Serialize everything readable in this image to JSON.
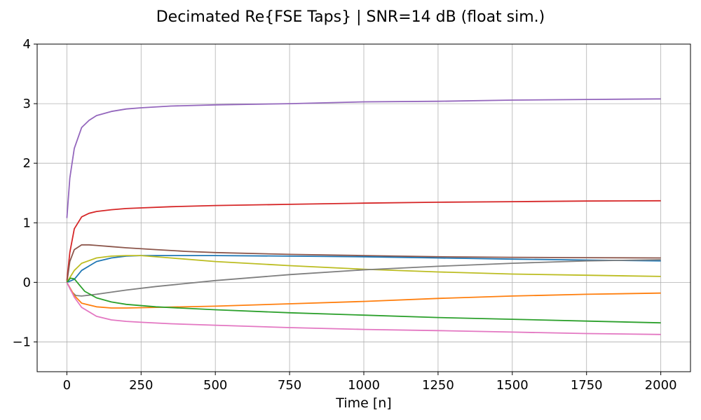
{
  "chart_data": {
    "type": "line",
    "title": "Decimated Re{FSE Taps} | SNR=14 dB (float sim.)",
    "xlabel": "Time [n]",
    "ylabel": "",
    "xlim": [
      -100,
      2100
    ],
    "ylim": [
      -1.5,
      4
    ],
    "xticks": [
      0,
      250,
      500,
      750,
      1000,
      1250,
      1500,
      1750,
      2000
    ],
    "yticks": [
      -1,
      0,
      1,
      2,
      3,
      4
    ],
    "grid": true,
    "series": [
      {
        "color": "#9467bd",
        "x": [
          0,
          10,
          25,
          50,
          75,
          100,
          150,
          200,
          250,
          350,
          500,
          750,
          1000,
          1250,
          1500,
          1750,
          2000
        ],
        "y": [
          1.08,
          1.75,
          2.25,
          2.6,
          2.72,
          2.8,
          2.87,
          2.91,
          2.93,
          2.96,
          2.98,
          3.0,
          3.03,
          3.04,
          3.06,
          3.07,
          3.08
        ]
      },
      {
        "color": "#d62728",
        "x": [
          0,
          10,
          25,
          50,
          75,
          100,
          150,
          200,
          250,
          350,
          500,
          750,
          1000,
          1250,
          1500,
          1750,
          2000
        ],
        "y": [
          0.03,
          0.5,
          0.9,
          1.1,
          1.16,
          1.19,
          1.22,
          1.24,
          1.25,
          1.27,
          1.29,
          1.31,
          1.33,
          1.345,
          1.355,
          1.365,
          1.37
        ]
      },
      {
        "color": "#8c564b",
        "x": [
          0,
          10,
          25,
          50,
          75,
          100,
          150,
          200,
          300,
          400,
          500,
          750,
          1000,
          1250,
          1500,
          1750,
          2000
        ],
        "y": [
          0.0,
          0.35,
          0.55,
          0.63,
          0.63,
          0.62,
          0.6,
          0.58,
          0.55,
          0.52,
          0.5,
          0.47,
          0.45,
          0.43,
          0.42,
          0.415,
          0.41
        ]
      },
      {
        "color": "#1f77b4",
        "x": [
          0,
          25,
          50,
          100,
          150,
          200,
          250,
          500,
          750,
          1000,
          1250,
          1500,
          1750,
          2000
        ],
        "y": [
          0.0,
          0.05,
          0.2,
          0.35,
          0.41,
          0.44,
          0.45,
          0.45,
          0.44,
          0.43,
          0.41,
          0.39,
          0.375,
          0.36
        ]
      },
      {
        "color": "#bcbd22",
        "x": [
          0,
          25,
          50,
          100,
          150,
          200,
          250,
          350,
          500,
          750,
          1000,
          1250,
          1500,
          1750,
          2000
        ],
        "y": [
          0.0,
          0.2,
          0.32,
          0.41,
          0.44,
          0.45,
          0.45,
          0.41,
          0.35,
          0.28,
          0.22,
          0.175,
          0.14,
          0.12,
          0.1
        ]
      },
      {
        "color": "#7f7f7f",
        "x": [
          0,
          15,
          30,
          50,
          100,
          200,
          300,
          500,
          750,
          1000,
          1250,
          1500,
          1750,
          2000
        ],
        "y": [
          0.0,
          -0.15,
          -0.22,
          -0.23,
          -0.2,
          -0.13,
          -0.07,
          0.03,
          0.13,
          0.21,
          0.27,
          0.32,
          0.36,
          0.38
        ]
      },
      {
        "color": "#ff7f0e",
        "x": [
          0,
          25,
          50,
          100,
          150,
          200,
          300,
          500,
          750,
          1000,
          1250,
          1500,
          1750,
          2000
        ],
        "y": [
          0.0,
          -0.22,
          -0.35,
          -0.41,
          -0.43,
          -0.43,
          -0.42,
          -0.4,
          -0.36,
          -0.32,
          -0.27,
          -0.23,
          -0.2,
          -0.18
        ]
      },
      {
        "color": "#2ca02c",
        "x": [
          0,
          12,
          25,
          40,
          60,
          100,
          150,
          200,
          300,
          500,
          750,
          1000,
          1250,
          1500,
          1750,
          2000
        ],
        "y": [
          0.0,
          0.07,
          0.06,
          -0.03,
          -0.15,
          -0.26,
          -0.33,
          -0.37,
          -0.41,
          -0.46,
          -0.51,
          -0.55,
          -0.59,
          -0.62,
          -0.65,
          -0.68
        ]
      },
      {
        "color": "#e377c2",
        "x": [
          0,
          25,
          50,
          100,
          150,
          200,
          250,
          350,
          500,
          750,
          1000,
          1250,
          1500,
          1750,
          2000
        ],
        "y": [
          0.0,
          -0.25,
          -0.42,
          -0.57,
          -0.63,
          -0.655,
          -0.67,
          -0.695,
          -0.72,
          -0.76,
          -0.79,
          -0.81,
          -0.835,
          -0.86,
          -0.875
        ]
      }
    ]
  }
}
